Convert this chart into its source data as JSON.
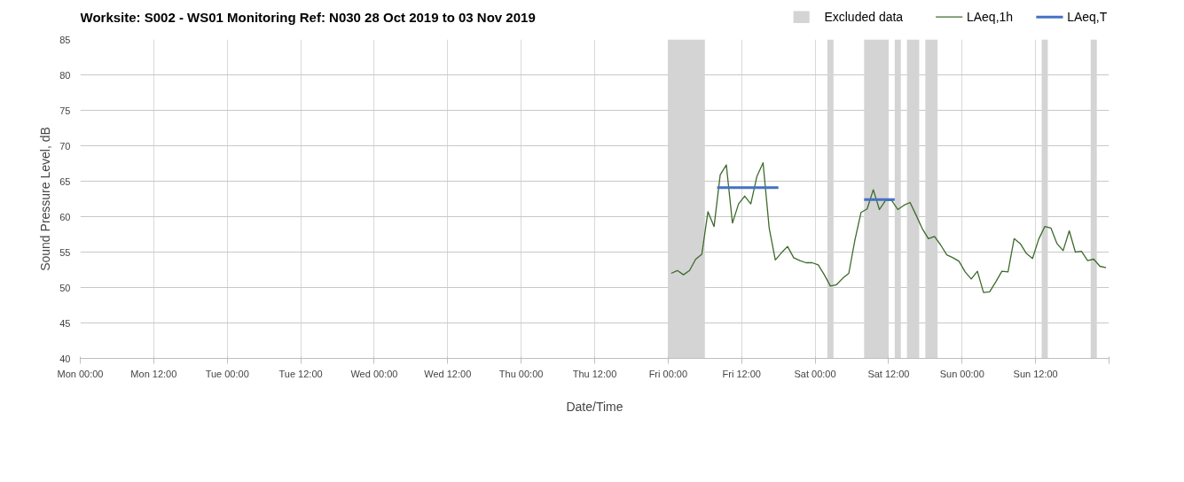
{
  "chart_data": {
    "type": "line",
    "title": "Worksite: S002 - WS01    Monitoring Ref: N030      28 Oct 2019 to 03 Nov 2019",
    "xlabel": "Date/Time",
    "ylabel": "Sound Pressure Level, dB",
    "xlim": [
      "2019-10-28T00:00",
      "2019-11-04T00:00"
    ],
    "ylim": [
      40,
      85
    ],
    "xticks": [
      {
        "value": "2019-10-28T00:00",
        "label": "Mon 00:00"
      },
      {
        "value": "2019-10-28T12:00",
        "label": "Mon 12:00"
      },
      {
        "value": "2019-10-29T00:00",
        "label": "Tue 00:00"
      },
      {
        "value": "2019-10-29T12:00",
        "label": "Tue 12:00"
      },
      {
        "value": "2019-10-30T00:00",
        "label": "Wed 00:00"
      },
      {
        "value": "2019-10-30T12:00",
        "label": "Wed 12:00"
      },
      {
        "value": "2019-10-31T00:00",
        "label": "Thu 00:00"
      },
      {
        "value": "2019-10-31T12:00",
        "label": "Thu 12:00"
      },
      {
        "value": "2019-11-01T00:00",
        "label": "Fri 00:00"
      },
      {
        "value": "2019-11-01T12:00",
        "label": "Fri 12:00"
      },
      {
        "value": "2019-11-02T00:00",
        "label": "Sat 00:00"
      },
      {
        "value": "2019-11-02T12:00",
        "label": "Sat 12:00"
      },
      {
        "value": "2019-11-03T00:00",
        "label": "Sun 00:00"
      },
      {
        "value": "2019-11-03T12:00",
        "label": "Sun 12:00"
      },
      {
        "value": "2019-11-04T00:00",
        "label": null
      }
    ],
    "yticks": [
      40,
      45,
      50,
      55,
      60,
      65,
      70,
      75,
      80,
      85
    ],
    "grid": true,
    "legend": "top right",
    "bands": [
      {
        "axis": "x",
        "from": "2019-11-01T00:00",
        "to": "2019-11-01T06:00",
        "label": "Excluded data",
        "color": "#d4d4d4"
      },
      {
        "axis": "x",
        "from": "2019-11-02T02:00",
        "to": "2019-11-02T03:00",
        "color": "#d4d4d4"
      },
      {
        "axis": "x",
        "from": "2019-11-02T08:00",
        "to": "2019-11-02T12:00",
        "color": "#d4d4d4"
      },
      {
        "axis": "x",
        "from": "2019-11-02T13:00",
        "to": "2019-11-02T14:00",
        "color": "#d4d4d4"
      },
      {
        "axis": "x",
        "from": "2019-11-02T15:00",
        "to": "2019-11-02T17:00",
        "color": "#d4d4d4"
      },
      {
        "axis": "x",
        "from": "2019-11-02T18:00",
        "to": "2019-11-02T20:00",
        "color": "#d4d4d4"
      },
      {
        "axis": "x",
        "from": "2019-11-03T13:00",
        "to": "2019-11-03T14:00",
        "color": "#d4d4d4"
      },
      {
        "axis": "x",
        "from": "2019-11-03T21:00",
        "to": "2019-11-03T22:00",
        "color": "#d4d4d4"
      }
    ],
    "series": [
      {
        "name": "LAeq,1h",
        "color": "#3d6b2b",
        "x": [
          "2019-11-01T00:30",
          "2019-11-01T01:30",
          "2019-11-01T02:30",
          "2019-11-01T03:30",
          "2019-11-01T04:30",
          "2019-11-01T05:30",
          "2019-11-01T06:30",
          "2019-11-01T07:30",
          "2019-11-01T08:30",
          "2019-11-01T09:30",
          "2019-11-01T10:30",
          "2019-11-01T11:30",
          "2019-11-01T12:30",
          "2019-11-01T13:30",
          "2019-11-01T14:30",
          "2019-11-01T15:30",
          "2019-11-01T16:30",
          "2019-11-01T17:30",
          "2019-11-01T18:30",
          "2019-11-01T19:30",
          "2019-11-01T20:30",
          "2019-11-01T21:30",
          "2019-11-01T22:30",
          "2019-11-01T23:30",
          "2019-11-02T00:30",
          "2019-11-02T01:30",
          "2019-11-02T02:30",
          "2019-11-02T03:30",
          "2019-11-02T04:30",
          "2019-11-02T05:30",
          "2019-11-02T06:30",
          "2019-11-02T07:30",
          "2019-11-02T08:30",
          "2019-11-02T09:30",
          "2019-11-02T10:30",
          "2019-11-02T11:30",
          "2019-11-02T12:30",
          "2019-11-02T13:30",
          "2019-11-02T14:30",
          "2019-11-02T15:30",
          "2019-11-02T16:30",
          "2019-11-02T17:30",
          "2019-11-02T18:30",
          "2019-11-02T19:30",
          "2019-11-02T20:30",
          "2019-11-02T21:30",
          "2019-11-02T22:30",
          "2019-11-02T23:30",
          "2019-11-03T00:30",
          "2019-11-03T01:30",
          "2019-11-03T02:30",
          "2019-11-03T03:30",
          "2019-11-03T04:30",
          "2019-11-03T05:30",
          "2019-11-03T06:30",
          "2019-11-03T07:30",
          "2019-11-03T08:30",
          "2019-11-03T09:30",
          "2019-11-03T10:30",
          "2019-11-03T11:30",
          "2019-11-03T12:30",
          "2019-11-03T13:30",
          "2019-11-03T14:30",
          "2019-11-03T15:30",
          "2019-11-03T16:30",
          "2019-11-03T17:30",
          "2019-11-03T18:30",
          "2019-11-03T19:30",
          "2019-11-03T20:30",
          "2019-11-03T21:30",
          "2019-11-03T22:30",
          "2019-11-03T23:30"
        ],
        "values": [
          52.0,
          52.4,
          51.8,
          52.4,
          54.0,
          54.7,
          60.7,
          58.6,
          65.9,
          67.3,
          59.1,
          61.8,
          62.9,
          61.8,
          65.7,
          67.6,
          58.4,
          53.9,
          54.9,
          55.8,
          54.2,
          53.8,
          53.5,
          53.5,
          53.2,
          51.8,
          50.2,
          50.4,
          51.3,
          52.0,
          56.7,
          60.6,
          61.1,
          63.8,
          61.0,
          62.3,
          62.3,
          61.0,
          61.6,
          62.0,
          60.2,
          58.3,
          56.9,
          57.2,
          56.0,
          54.6,
          54.2,
          53.7,
          52.2,
          51.2,
          52.3,
          49.3,
          49.4,
          50.8,
          52.3,
          52.2,
          56.9,
          56.2,
          54.8,
          54.1,
          56.8,
          58.6,
          58.4,
          56.2,
          55.2,
          58.0,
          55.0,
          55.1,
          53.8,
          54.0,
          53.0,
          52.8
        ]
      },
      {
        "name": "LAeq,T",
        "color": "#4472c4",
        "x": [
          "2019-11-01T08:00",
          "2019-11-01T18:00",
          "2019-11-02T00:00",
          "2019-11-02T08:00",
          "2019-11-02T13:00"
        ],
        "values": [
          64.1,
          64.1,
          null,
          62.4,
          62.4
        ]
      }
    ]
  }
}
